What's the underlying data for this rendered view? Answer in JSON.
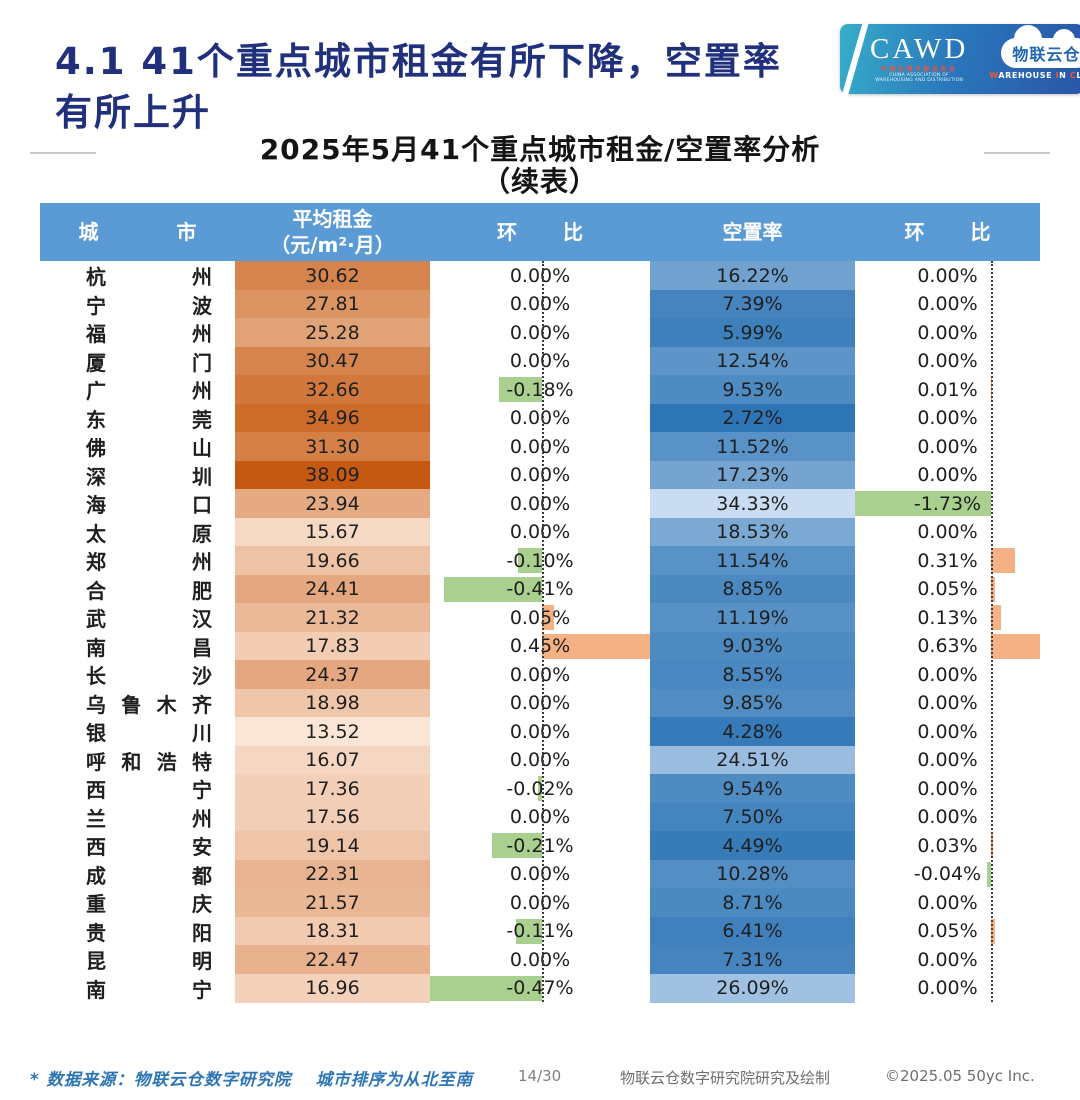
{
  "header": {
    "title_line1": "4.1 41个重点城市租金有所下降，空置率",
    "title_line2": "有所上升",
    "logo": {
      "cawd": "CAWD",
      "cawd_sub_cn": "中国仓储与配送协会",
      "cawd_sub_en": "CHINA ASSOCIATION OF WAREHOUSING AND DISTRIBUTION",
      "wic_name": "物联云仓",
      "wic_sub": "WAREHOUSE IN CLOUD"
    }
  },
  "table": {
    "title_line1": "2025年5月41个重点城市租金/空置率分析",
    "title_line2": "（续表）",
    "columns": {
      "city": "城市",
      "rent_line1": "平均租金",
      "rent_line2": "（元/m²·月）",
      "mom": "环比",
      "vacancy": "空置率"
    },
    "rows": [
      {
        "city": "杭州",
        "rent": "30.62",
        "rent_mom": "0.00%",
        "vacancy": "16.22%",
        "vacancy_mom": "0.00%"
      },
      {
        "city": "宁波",
        "rent": "27.81",
        "rent_mom": "0.00%",
        "vacancy": "7.39%",
        "vacancy_mom": "0.00%"
      },
      {
        "city": "福州",
        "rent": "25.28",
        "rent_mom": "0.00%",
        "vacancy": "5.99%",
        "vacancy_mom": "0.00%"
      },
      {
        "city": "厦门",
        "rent": "30.47",
        "rent_mom": "0.00%",
        "vacancy": "12.54%",
        "vacancy_mom": "0.00%"
      },
      {
        "city": "广州",
        "rent": "32.66",
        "rent_mom": "-0.18%",
        "vacancy": "9.53%",
        "vacancy_mom": "0.01%"
      },
      {
        "city": "东莞",
        "rent": "34.96",
        "rent_mom": "0.00%",
        "vacancy": "2.72%",
        "vacancy_mom": "0.00%"
      },
      {
        "city": "佛山",
        "rent": "31.30",
        "rent_mom": "0.00%",
        "vacancy": "11.52%",
        "vacancy_mom": "0.00%"
      },
      {
        "city": "深圳",
        "rent": "38.09",
        "rent_mom": "0.00%",
        "vacancy": "17.23%",
        "vacancy_mom": "0.00%"
      },
      {
        "city": "海口",
        "rent": "23.94",
        "rent_mom": "0.00%",
        "vacancy": "34.33%",
        "vacancy_mom": "-1.73%"
      },
      {
        "city": "太原",
        "rent": "15.67",
        "rent_mom": "0.00%",
        "vacancy": "18.53%",
        "vacancy_mom": "0.00%"
      },
      {
        "city": "郑州",
        "rent": "19.66",
        "rent_mom": "-0.10%",
        "vacancy": "11.54%",
        "vacancy_mom": "0.31%"
      },
      {
        "city": "合肥",
        "rent": "24.41",
        "rent_mom": "-0.41%",
        "vacancy": "8.85%",
        "vacancy_mom": "0.05%"
      },
      {
        "city": "武汉",
        "rent": "21.32",
        "rent_mom": "0.05%",
        "vacancy": "11.19%",
        "vacancy_mom": "0.13%"
      },
      {
        "city": "南昌",
        "rent": "17.83",
        "rent_mom": "0.45%",
        "vacancy": "9.03%",
        "vacancy_mom": "0.63%"
      },
      {
        "city": "长沙",
        "rent": "24.37",
        "rent_mom": "0.00%",
        "vacancy": "8.55%",
        "vacancy_mom": "0.00%"
      },
      {
        "city": "乌鲁木齐",
        "rent": "18.98",
        "rent_mom": "0.00%",
        "vacancy": "9.85%",
        "vacancy_mom": "0.00%"
      },
      {
        "city": "银川",
        "rent": "13.52",
        "rent_mom": "0.00%",
        "vacancy": "4.28%",
        "vacancy_mom": "0.00%"
      },
      {
        "city": "呼和浩特",
        "rent": "16.07",
        "rent_mom": "0.00%",
        "vacancy": "24.51%",
        "vacancy_mom": "0.00%"
      },
      {
        "city": "西宁",
        "rent": "17.36",
        "rent_mom": "-0.02%",
        "vacancy": "9.54%",
        "vacancy_mom": "0.00%"
      },
      {
        "city": "兰州",
        "rent": "17.56",
        "rent_mom": "0.00%",
        "vacancy": "7.50%",
        "vacancy_mom": "0.00%"
      },
      {
        "city": "西安",
        "rent": "19.14",
        "rent_mom": "-0.21%",
        "vacancy": "4.49%",
        "vacancy_mom": "0.03%"
      },
      {
        "city": "成都",
        "rent": "22.31",
        "rent_mom": "0.00%",
        "vacancy": "10.28%",
        "vacancy_mom": "-0.04%"
      },
      {
        "city": "重庆",
        "rent": "21.57",
        "rent_mom": "0.00%",
        "vacancy": "8.71%",
        "vacancy_mom": "0.00%"
      },
      {
        "city": "贵阳",
        "rent": "18.31",
        "rent_mom": "-0.11%",
        "vacancy": "6.41%",
        "vacancy_mom": "0.05%"
      },
      {
        "city": "昆明",
        "rent": "22.47",
        "rent_mom": "0.00%",
        "vacancy": "7.31%",
        "vacancy_mom": "0.00%"
      },
      {
        "city": "南宁",
        "rent": "16.96",
        "rent_mom": "-0.47%",
        "vacancy": "26.09%",
        "vacancy_mom": "0.00%"
      }
    ]
  },
  "footer": {
    "source_note": "* 数据来源：物联云仓数字研究院　 城市排序为从北至南",
    "page_number": "14/30",
    "credit": "物联云仓数字研究院研究及绘制",
    "copyright": "©2025.05 50yc Inc."
  },
  "colors": {
    "header_bg": "#5B9BD5",
    "title_text": "#20307C",
    "rent_scale_min": "#FBE5D6",
    "rent_scale_max": "#C65911",
    "vacancy_scale_low": "#2E75B6",
    "vacancy_scale_high": "#C9DCF1",
    "bar_positive": "#F4B183",
    "bar_negative": "#A9D08E"
  }
}
